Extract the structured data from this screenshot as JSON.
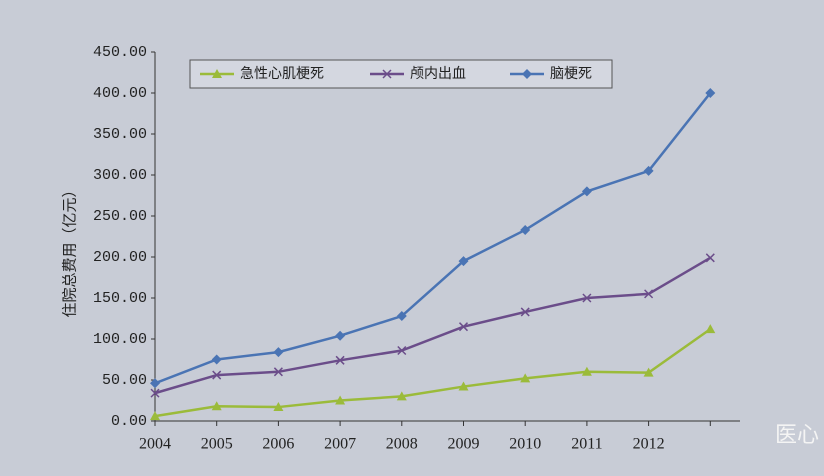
{
  "chart_data": {
    "type": "line",
    "y_label": "住院总费用（亿元）",
    "categories": [
      "2004",
      "2005",
      "2006",
      "2007",
      "2008",
      "2009",
      "2010",
      "2011",
      "2012",
      null
    ],
    "series": [
      {
        "name": "急性心肌梗死",
        "color": "#9bbb3a",
        "marker": "triangle",
        "values": [
          6,
          18,
          17,
          25,
          30,
          42,
          52,
          60,
          59,
          112
        ]
      },
      {
        "name": "颅内出血",
        "color": "#6b4d8a",
        "marker": "x",
        "values": [
          34,
          56,
          60,
          74,
          86,
          115,
          133,
          150,
          155,
          199
        ]
      },
      {
        "name": "脑梗死",
        "color": "#4a74b4",
        "marker": "diamond",
        "values": [
          46,
          75,
          84,
          104,
          128,
          195,
          233,
          280,
          305,
          400
        ]
      }
    ],
    "ylim": [
      0,
      450
    ],
    "yticks": [
      {
        "value": 0,
        "label": "0.00"
      },
      {
        "value": 50,
        "label": "50.00"
      },
      {
        "value": 100,
        "label": "100.00"
      },
      {
        "value": 150,
        "label": "150.00"
      },
      {
        "value": 200,
        "label": "200.00"
      },
      {
        "value": 250,
        "label": "250.00"
      },
      {
        "value": 300,
        "label": "300.00"
      },
      {
        "value": 350,
        "label": "350.00"
      },
      {
        "value": 400,
        "label": "400.00"
      },
      {
        "value": 450,
        "label": "450.00"
      }
    ],
    "grid": false,
    "legend": "top",
    "watermark": "医心"
  }
}
